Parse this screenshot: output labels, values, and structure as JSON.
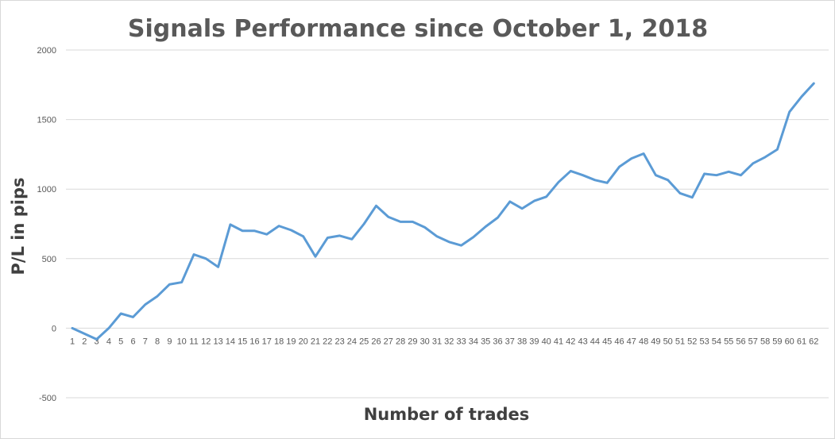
{
  "chart_data": {
    "type": "line",
    "title": "Signals Performance since October 1, 2018",
    "xlabel": "Number of trades",
    "ylabel": "P/L in pips",
    "ylim": [
      -500,
      2000
    ],
    "y_ticks": [
      -500,
      0,
      500,
      1000,
      1500,
      2000
    ],
    "grid": true,
    "legend": "none",
    "colors": {
      "line": "#5b9bd5",
      "grid": "#d9d9d9",
      "text": "#595959"
    },
    "categories": [
      "1",
      "2",
      "3",
      "4",
      "5",
      "6",
      "7",
      "8",
      "9",
      "10",
      "11",
      "12",
      "13",
      "14",
      "15",
      "16",
      "17",
      "18",
      "19",
      "20",
      "21",
      "22",
      "23",
      "24",
      "25",
      "26",
      "27",
      "28",
      "29",
      "30",
      "31",
      "32",
      "33",
      "34",
      "35",
      "36",
      "37",
      "38",
      "39",
      "40",
      "41",
      "42",
      "43",
      "44",
      "45",
      "46",
      "47",
      "48",
      "49",
      "50",
      "51",
      "52",
      "53",
      "54",
      "55",
      "56",
      "57",
      "58",
      "59",
      "60",
      "61",
      "62"
    ],
    "series": [
      {
        "values": [
          0,
          -40,
          -80,
          0,
          105,
          80,
          170,
          230,
          315,
          330,
          530,
          500,
          440,
          745,
          700,
          700,
          675,
          735,
          705,
          660,
          515,
          650,
          665,
          640,
          750,
          880,
          800,
          765,
          765,
          725,
          660,
          620,
          595,
          655,
          730,
          795,
          910,
          860,
          915,
          945,
          1050,
          1130,
          1100,
          1065,
          1045,
          1160,
          1220,
          1255,
          1100,
          1065,
          970,
          940,
          1110,
          1100,
          1125,
          1100,
          1185,
          1230,
          1285,
          1555,
          1665,
          1760
        ]
      }
    ]
  }
}
